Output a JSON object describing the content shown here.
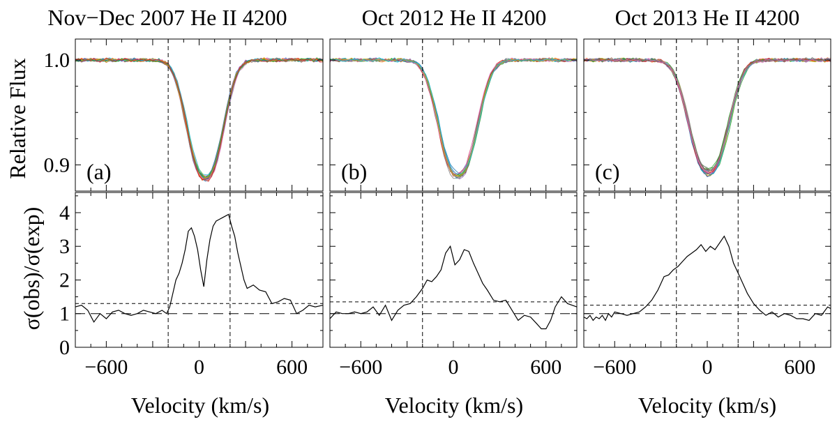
{
  "figure": {
    "ylabel_top": "Relative Flux",
    "ylabel_bottom": "σ(obs)/σ(exp)",
    "xlabel": "Velocity (km/s)",
    "line_colors": [
      "#1f77b4",
      "#ff7f0e",
      "#2ca02c",
      "#d62728",
      "#9467bd",
      "#8c564b",
      "#e377c2",
      "#7f7f7f",
      "#bcbd22",
      "#17becf"
    ]
  },
  "chart_data": [
    {
      "type": "line",
      "title": "Nov−Dec 2007 He II 4200",
      "panel_label": "(a)",
      "xlabel": "Velocity (km/s)",
      "xlim": [
        -800,
        800
      ],
      "xticks": [
        -600,
        0,
        600
      ],
      "vlines": [
        -200,
        200
      ],
      "flux": {
        "ylabel": "Relative Flux",
        "ylim": [
          0.875,
          1.02
        ],
        "yticks": [
          0.9,
          1.0
        ],
        "n_spectra": 24,
        "profile": {
          "center": 40,
          "depth": 0.113,
          "width": 150,
          "baseline": 1.0
        }
      },
      "sigma": {
        "ylabel": "σ(obs)/σ(exp)",
        "ylim": [
          0,
          4.6
        ],
        "yticks": [
          0,
          1,
          2,
          3,
          4
        ],
        "hlines": [
          1.0,
          1.3
        ],
        "x": [
          -800,
          -760,
          -720,
          -680,
          -640,
          -600,
          -560,
          -520,
          -480,
          -440,
          -400,
          -360,
          -320,
          -280,
          -240,
          -210,
          -190,
          -170,
          -150,
          -130,
          -110,
          -90,
          -70,
          -50,
          -30,
          -10,
          10,
          30,
          50,
          70,
          90,
          110,
          130,
          150,
          170,
          190,
          210,
          230,
          250,
          270,
          290,
          310,
          350,
          390,
          430,
          470,
          510,
          550,
          590,
          630,
          670,
          710,
          750,
          800
        ],
        "values": [
          1.2,
          1.25,
          1.1,
          0.75,
          1.0,
          0.85,
          1.05,
          1.1,
          1.0,
          0.95,
          1.0,
          1.1,
          1.05,
          1.0,
          1.1,
          1.0,
          1.2,
          1.6,
          2.0,
          2.2,
          2.5,
          2.9,
          3.45,
          3.55,
          3.3,
          2.9,
          2.3,
          1.8,
          2.6,
          3.2,
          3.6,
          3.75,
          3.8,
          3.85,
          3.9,
          3.95,
          3.6,
          3.3,
          2.8,
          2.4,
          2.0,
          1.75,
          1.85,
          1.7,
          1.65,
          1.3,
          1.35,
          1.45,
          1.4,
          1.0,
          1.1,
          1.25,
          1.2,
          1.25
        ]
      }
    },
    {
      "type": "line",
      "title": "Oct 2012 He II 4200",
      "panel_label": "(b)",
      "xlabel": "Velocity (km/s)",
      "xlim": [
        -800,
        800
      ],
      "xticks": [
        -600,
        0,
        600
      ],
      "vlines": [
        -200
      ],
      "flux": {
        "ylabel": "Relative Flux",
        "ylim": [
          0.875,
          1.02
        ],
        "yticks": [
          0.9,
          1.0
        ],
        "n_spectra": 20,
        "profile": {
          "center": 30,
          "depth": 0.11,
          "width": 160,
          "baseline": 1.0
        }
      },
      "sigma": {
        "ylabel": "σ(obs)/σ(exp)",
        "ylim": [
          0,
          4.6
        ],
        "yticks": [
          0,
          1,
          2,
          3,
          4
        ],
        "hlines": [
          1.0,
          1.35
        ],
        "x": [
          -800,
          -760,
          -720,
          -680,
          -640,
          -600,
          -560,
          -520,
          -480,
          -440,
          -400,
          -360,
          -320,
          -280,
          -240,
          -200,
          -170,
          -140,
          -110,
          -80,
          -50,
          -20,
          10,
          40,
          70,
          100,
          130,
          160,
          190,
          220,
          260,
          300,
          340,
          380,
          420,
          460,
          500,
          540,
          570,
          600,
          630,
          660,
          700,
          740,
          800
        ],
        "values": [
          0.85,
          1.05,
          1.0,
          1.0,
          1.05,
          1.0,
          1.05,
          1.2,
          0.95,
          1.25,
          0.8,
          1.1,
          1.25,
          1.3,
          1.5,
          1.75,
          2.0,
          1.95,
          2.1,
          2.3,
          2.8,
          3.0,
          2.45,
          2.6,
          2.9,
          2.85,
          2.5,
          2.2,
          1.9,
          1.7,
          1.4,
          1.35,
          1.4,
          1.1,
          0.8,
          0.95,
          0.9,
          0.7,
          0.55,
          0.55,
          0.8,
          1.2,
          1.5,
          1.3,
          1.2
        ]
      }
    },
    {
      "type": "line",
      "title": "Oct 2013 He II 4200",
      "panel_label": "(c)",
      "xlabel": "Velocity (km/s)",
      "xlim": [
        -800,
        800
      ],
      "xticks": [
        -600,
        0,
        600
      ],
      "vlines": [
        -200,
        200
      ],
      "flux": {
        "ylabel": "Relative Flux",
        "ylim": [
          0.875,
          1.02
        ],
        "yticks": [
          0.9,
          1.0
        ],
        "n_spectra": 28,
        "profile": {
          "center": 10,
          "depth": 0.107,
          "width": 165,
          "baseline": 1.0
        }
      },
      "sigma": {
        "ylabel": "σ(obs)/σ(exp)",
        "ylim": [
          0,
          4.6
        ],
        "yticks": [
          0,
          1,
          2,
          3,
          4
        ],
        "hlines": [
          1.0,
          1.25
        ],
        "x": [
          -800,
          -780,
          -760,
          -740,
          -720,
          -700,
          -680,
          -660,
          -640,
          -620,
          -600,
          -560,
          -520,
          -480,
          -440,
          -400,
          -360,
          -320,
          -280,
          -250,
          -220,
          -190,
          -160,
          -130,
          -100,
          -70,
          -40,
          -10,
          20,
          50,
          80,
          110,
          140,
          170,
          200,
          230,
          260,
          300,
          340,
          380,
          420,
          460,
          500,
          540,
          580,
          620,
          660,
          700,
          740,
          780,
          800
        ],
        "values": [
          0.9,
          0.85,
          0.95,
          0.8,
          0.9,
          0.85,
          0.95,
          0.8,
          1.0,
          0.9,
          1.05,
          1.0,
          0.95,
          1.0,
          1.05,
          1.2,
          1.4,
          1.7,
          2.1,
          2.15,
          2.3,
          2.4,
          2.55,
          2.7,
          2.8,
          2.9,
          3.05,
          2.85,
          3.0,
          2.9,
          3.1,
          3.3,
          3.0,
          2.5,
          2.2,
          1.9,
          1.6,
          1.3,
          1.1,
          0.95,
          1.05,
          0.9,
          1.0,
          0.95,
          0.85,
          0.85,
          0.8,
          1.0,
          0.95,
          1.2,
          1.15
        ]
      }
    }
  ]
}
